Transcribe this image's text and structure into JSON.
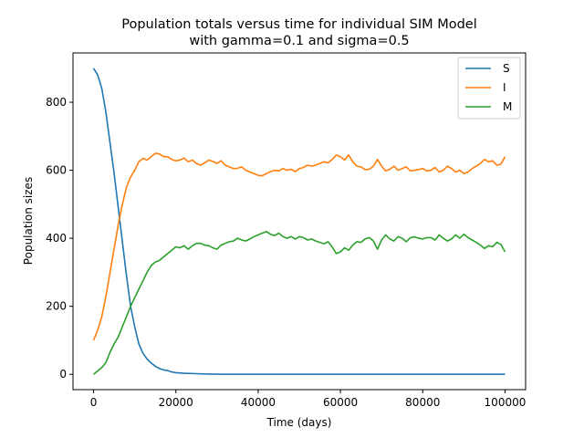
{
  "chart_data": {
    "type": "line",
    "title": [
      "Population totals versus time for individual SIM Model",
      "with gamma=0.1 and sigma=0.5"
    ],
    "xlabel": "Time (days)",
    "ylabel": "Population sizes",
    "xlim": [
      -5000,
      105000
    ],
    "ylim": [
      -45,
      945
    ],
    "xticks": [
      0,
      20000,
      40000,
      60000,
      80000,
      100000
    ],
    "yticks": [
      0,
      200,
      400,
      600,
      800
    ],
    "grid": false,
    "legend_position": "top-right",
    "series": [
      {
        "name": "S",
        "color": "#1f77b4",
        "x": [
          0,
          1000,
          2000,
          3000,
          4000,
          5000,
          6000,
          7000,
          8000,
          9000,
          10000,
          11000,
          12000,
          13000,
          14000,
          15000,
          16000,
          17000,
          18000,
          19000,
          20000,
          22000,
          25000,
          28000,
          32000,
          40000,
          60000,
          80000,
          100000
        ],
        "y": [
          900,
          880,
          840,
          770,
          680,
          590,
          490,
          390,
          290,
          200,
          140,
          90,
          62,
          45,
          33,
          24,
          17,
          13,
          11,
          7,
          5,
          3,
          2,
          1,
          0,
          0,
          0,
          0,
          0
        ]
      },
      {
        "name": "I",
        "color": "#ff7f0e",
        "x": [
          0,
          1000,
          2000,
          3000,
          4000,
          5000,
          6000,
          7000,
          8000,
          9000,
          10000,
          11000,
          12000,
          13000,
          14000,
          15000,
          16000,
          17000,
          18000,
          19000,
          20000,
          21000,
          22000,
          23000,
          24000,
          25000,
          26000,
          27000,
          28000,
          29000,
          30000,
          31000,
          32000,
          33000,
          34000,
          35000,
          36000,
          37000,
          38000,
          39000,
          40000,
          41000,
          42000,
          43000,
          44000,
          45000,
          46000,
          47000,
          48000,
          49000,
          50000,
          51000,
          52000,
          53000,
          54000,
          55000,
          56000,
          57000,
          58000,
          59000,
          60000,
          61000,
          62000,
          63000,
          64000,
          65000,
          66000,
          67000,
          68000,
          69000,
          70000,
          71000,
          72000,
          73000,
          74000,
          75000,
          76000,
          77000,
          78000,
          79000,
          80000,
          81000,
          82000,
          83000,
          84000,
          85000,
          86000,
          87000,
          88000,
          89000,
          90000,
          91000,
          92000,
          93000,
          94000,
          95000,
          96000,
          97000,
          98000,
          99000,
          100000
        ],
        "y": [
          100,
          130,
          170,
          230,
          300,
          370,
          440,
          500,
          550,
          580,
          600,
          625,
          635,
          630,
          640,
          650,
          648,
          640,
          640,
          632,
          628,
          630,
          636,
          625,
          630,
          620,
          615,
          622,
          630,
          626,
          620,
          628,
          615,
          610,
          605,
          606,
          610,
          600,
          595,
          590,
          585,
          584,
          590,
          596,
          600,
          598,
          605,
          600,
          603,
          596,
          605,
          608,
          615,
          612,
          615,
          620,
          625,
          622,
          632,
          645,
          640,
          630,
          645,
          625,
          612,
          610,
          602,
          603,
          612,
          632,
          612,
          598,
          603,
          612,
          600,
          605,
          610,
          598,
          600,
          602,
          605,
          598,
          600,
          608,
          595,
          600,
          612,
          605,
          595,
          600,
          590,
          595,
          605,
          612,
          620,
          632,
          625,
          628,
          615,
          618,
          640
        ]
      },
      {
        "name": "M",
        "color": "#2ca02c",
        "x": [
          0,
          1000,
          2000,
          3000,
          4000,
          5000,
          6000,
          7000,
          8000,
          9000,
          10000,
          11000,
          12000,
          13000,
          14000,
          15000,
          16000,
          17000,
          18000,
          19000,
          20000,
          21000,
          22000,
          23000,
          24000,
          25000,
          26000,
          27000,
          28000,
          29000,
          30000,
          31000,
          32000,
          33000,
          34000,
          35000,
          36000,
          37000,
          38000,
          39000,
          40000,
          41000,
          42000,
          43000,
          44000,
          45000,
          46000,
          47000,
          48000,
          49000,
          50000,
          51000,
          52000,
          53000,
          54000,
          55000,
          56000,
          57000,
          58000,
          59000,
          60000,
          61000,
          62000,
          63000,
          64000,
          65000,
          66000,
          67000,
          68000,
          69000,
          70000,
          71000,
          72000,
          73000,
          74000,
          75000,
          76000,
          77000,
          78000,
          79000,
          80000,
          81000,
          82000,
          83000,
          84000,
          85000,
          86000,
          87000,
          88000,
          89000,
          90000,
          91000,
          92000,
          93000,
          94000,
          95000,
          96000,
          97000,
          98000,
          99000,
          100000
        ],
        "y": [
          0,
          10,
          20,
          35,
          65,
          90,
          110,
          140,
          170,
          200,
          225,
          250,
          275,
          300,
          320,
          330,
          335,
          345,
          355,
          365,
          375,
          372,
          378,
          368,
          378,
          385,
          385,
          380,
          378,
          372,
          368,
          380,
          385,
          390,
          392,
          400,
          395,
          392,
          398,
          405,
          410,
          415,
          420,
          412,
          408,
          415,
          405,
          400,
          405,
          398,
          405,
          402,
          395,
          398,
          392,
          388,
          384,
          390,
          374,
          355,
          360,
          372,
          365,
          380,
          390,
          388,
          398,
          402,
          392,
          368,
          395,
          410,
          398,
          392,
          405,
          400,
          390,
          402,
          404,
          400,
          398,
          402,
          402,
          395,
          410,
          400,
          392,
          398,
          410,
          400,
          412,
          402,
          395,
          388,
          380,
          370,
          378,
          375,
          388,
          382,
          360
        ]
      }
    ]
  }
}
